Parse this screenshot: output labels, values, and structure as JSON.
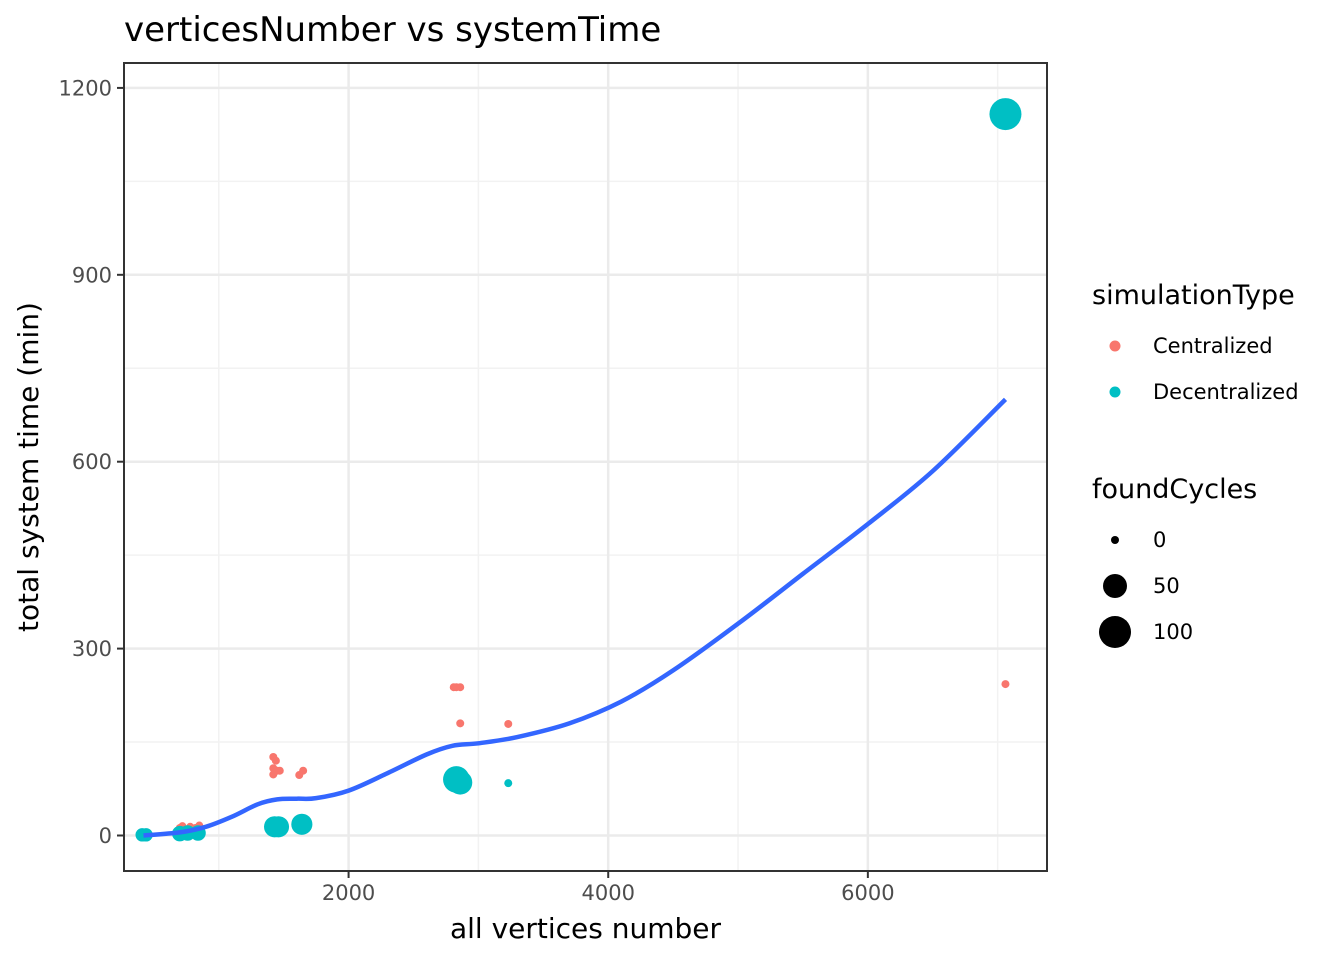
{
  "chart_data": {
    "type": "scatter",
    "title": "verticesNumber vs systemTime",
    "xlabel": "all vertices number",
    "ylabel": "total system time (min)",
    "xlim": [
      270,
      7380
    ],
    "ylim": [
      -57,
      1240
    ],
    "x_ticks": [
      2000,
      4000,
      6000
    ],
    "x_tick_labels": [
      "2000",
      "4000",
      "6000"
    ],
    "x_minor_ticks": [
      1000,
      3000,
      5000,
      7000
    ],
    "y_ticks": [
      0,
      300,
      600,
      900,
      1200
    ],
    "y_tick_labels": [
      "0",
      "300",
      "600",
      "900",
      "1200"
    ],
    "y_minor_ticks": [
      150,
      450,
      750,
      1050
    ],
    "grid": true,
    "legend_position": "right",
    "colors": {
      "Centralized": "#F8766D",
      "Decentralized": "#00BFC4",
      "smooth": "#3366FF"
    },
    "color_legend": {
      "title": "simulationType",
      "entries": [
        "Centralized",
        "Decentralized"
      ]
    },
    "size_legend": {
      "title": "foundCycles",
      "entries": [
        {
          "label": "0",
          "value": 0
        },
        {
          "label": "50",
          "value": 50
        },
        {
          "label": "100",
          "value": 100
        }
      ]
    },
    "series": [
      {
        "name": "Centralized",
        "points": [
          {
            "x": 420,
            "y": 2,
            "cycles": 0
          },
          {
            "x": 450,
            "y": 4,
            "cycles": 0
          },
          {
            "x": 700,
            "y": 12,
            "cycles": 0
          },
          {
            "x": 720,
            "y": 15,
            "cycles": 0
          },
          {
            "x": 740,
            "y": 10,
            "cycles": 0
          },
          {
            "x": 780,
            "y": 14,
            "cycles": 0
          },
          {
            "x": 820,
            "y": 12,
            "cycles": 0
          },
          {
            "x": 850,
            "y": 16,
            "cycles": 0
          },
          {
            "x": 1420,
            "y": 126,
            "cycles": 0
          },
          {
            "x": 1420,
            "y": 108,
            "cycles": 0
          },
          {
            "x": 1420,
            "y": 98,
            "cycles": 0
          },
          {
            "x": 1440,
            "y": 120,
            "cycles": 0
          },
          {
            "x": 1450,
            "y": 104,
            "cycles": 0
          },
          {
            "x": 1470,
            "y": 104,
            "cycles": 0
          },
          {
            "x": 1620,
            "y": 97,
            "cycles": 0
          },
          {
            "x": 1650,
            "y": 104,
            "cycles": 0
          },
          {
            "x": 2810,
            "y": 238,
            "cycles": 0
          },
          {
            "x": 2830,
            "y": 238,
            "cycles": 0
          },
          {
            "x": 2860,
            "y": 238,
            "cycles": 0
          },
          {
            "x": 2860,
            "y": 180,
            "cycles": 0
          },
          {
            "x": 3230,
            "y": 179,
            "cycles": 0
          },
          {
            "x": 7060,
            "y": 243,
            "cycles": 0
          }
        ]
      },
      {
        "name": "Decentralized",
        "points": [
          {
            "x": 410,
            "y": 1,
            "cycles": 5
          },
          {
            "x": 440,
            "y": 1,
            "cycles": 5
          },
          {
            "x": 700,
            "y": 3,
            "cycles": 10
          },
          {
            "x": 760,
            "y": 4,
            "cycles": 10
          },
          {
            "x": 840,
            "y": 4,
            "cycles": 10
          },
          {
            "x": 1430,
            "y": 14,
            "cycles": 30
          },
          {
            "x": 1460,
            "y": 14,
            "cycles": 30
          },
          {
            "x": 1640,
            "y": 18,
            "cycles": 30
          },
          {
            "x": 2830,
            "y": 90,
            "cycles": 60
          },
          {
            "x": 2860,
            "y": 85,
            "cycles": 45
          },
          {
            "x": 3230,
            "y": 84,
            "cycles": 0
          },
          {
            "x": 7060,
            "y": 1158,
            "cycles": 100
          }
        ]
      }
    ],
    "smooth_curve": {
      "x": [
        420,
        700,
        900,
        1100,
        1300,
        1450,
        1600,
        1750,
        2000,
        2300,
        2600,
        2800,
        3000,
        3300,
        3700,
        4100,
        4500,
        5000,
        5500,
        6000,
        6500,
        7060
      ],
      "y": [
        0,
        5,
        14,
        30,
        50,
        58,
        59,
        60,
        72,
        100,
        130,
        144,
        148,
        158,
        180,
        215,
        265,
        340,
        420,
        500,
        585,
        700
      ]
    }
  }
}
